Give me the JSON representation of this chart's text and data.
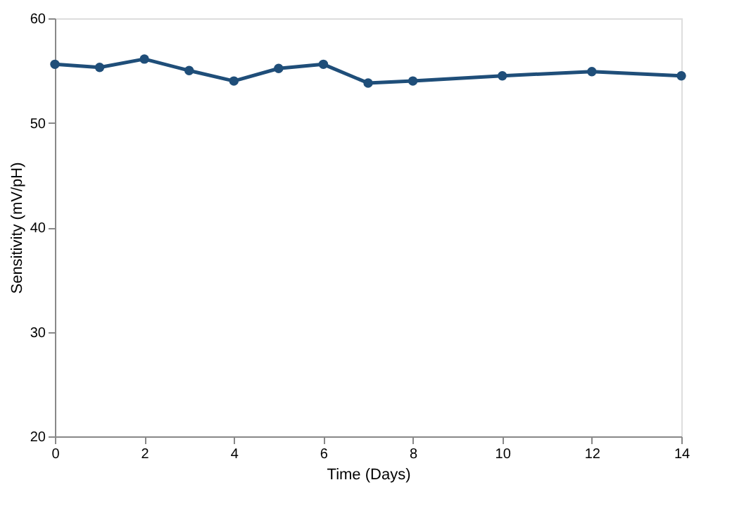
{
  "chart_data": {
    "type": "line",
    "xlabel": "Time (Days)",
    "ylabel": "Sensitivity (mV/pH)",
    "x": [
      0,
      1,
      2,
      3,
      4,
      5,
      6,
      7,
      8,
      10,
      12,
      14
    ],
    "series": [
      {
        "color": "#1f4e79",
        "values": [
          55.6,
          55.3,
          56.1,
          55.0,
          54.0,
          55.2,
          55.6,
          53.8,
          54.0,
          54.5,
          54.9,
          54.5
        ]
      }
    ],
    "xlim": [
      0,
      14
    ],
    "xticks": [
      0,
      2,
      4,
      6,
      8,
      10,
      12,
      14
    ],
    "ylim": [
      20,
      60
    ],
    "yticks": [
      20,
      30,
      40,
      50,
      60
    ],
    "grid": false,
    "marker": "circle",
    "line_style": "solid"
  }
}
